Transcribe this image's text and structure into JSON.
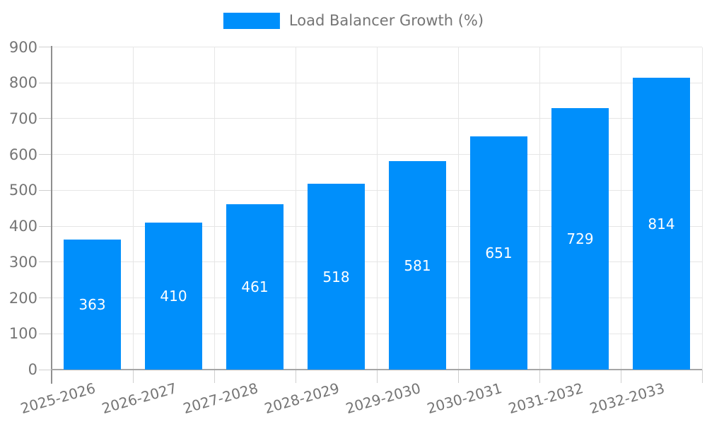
{
  "chart_data": {
    "type": "bar",
    "title": "",
    "legend_label": "Load Balancer Growth (%)",
    "legend_position": "top",
    "grid": true,
    "categories": [
      "2025-2026",
      "2026-2027",
      "2027-2028",
      "2028-2029",
      "2029-2030",
      "2030-2031",
      "2031-2032",
      "2032-2033"
    ],
    "series": [
      {
        "name": "Load Balancer Growth (%)",
        "values": [
          363,
          410,
          461,
          518,
          581,
          651,
          729,
          814
        ]
      }
    ],
    "values": [
      363,
      410,
      461,
      518,
      581,
      651,
      729,
      814
    ],
    "yticks": [
      0,
      100,
      200,
      300,
      400,
      500,
      600,
      700,
      800,
      900
    ],
    "ylim": [
      0,
      900
    ],
    "xlabel": "",
    "ylabel": "",
    "colors": {
      "bar": "#008FFB",
      "axis_label": "#757575",
      "value_label": "#FFFFFF",
      "gridline": "#E6E6E6",
      "tick": "#CFCFCF",
      "y_axis_line": "#8F8F8F",
      "x_axis_line": "#A6A6A6",
      "background": "#FFFFFF"
    }
  }
}
